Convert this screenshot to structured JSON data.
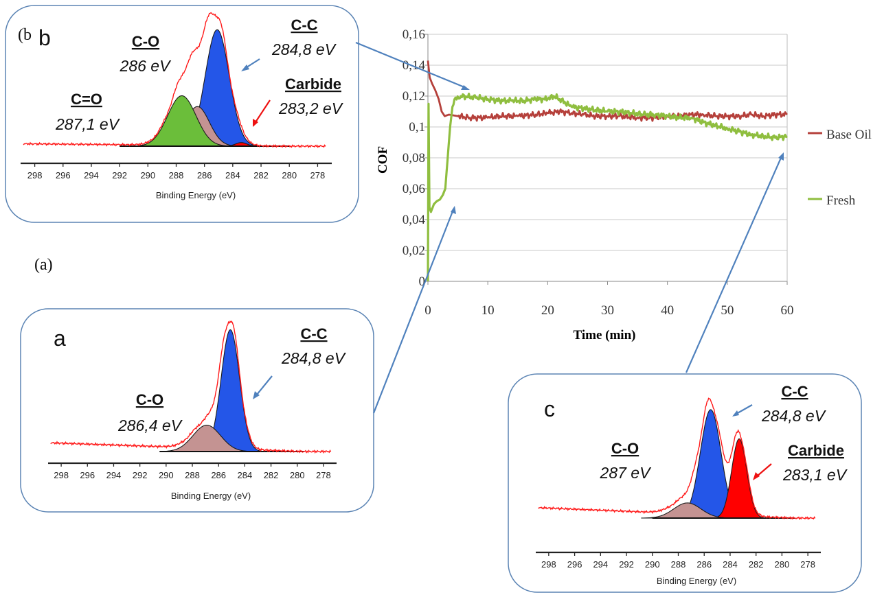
{
  "colors": {
    "base_oil": "#b5403b",
    "fresh": "#8fbe3f",
    "inset_frame": "#5b84b4",
    "pointer": "#4f81bd",
    "envelope": "#ff1a1a",
    "cc_peak": "#2456e8",
    "co_peak": "#c49392",
    "co2_peak": "#6bbe3a",
    "carbide_peak": "#ff0000",
    "red_arrow": "#ee1111"
  },
  "labels": {
    "panel_a_caption": "(a)",
    "panel_b_caption": "(b"
  },
  "chart_data": [
    {
      "id": "cof",
      "type": "line",
      "x_label": "Time (min)",
      "y_label": "COF",
      "x_ticks": [
        "0",
        "10",
        "20",
        "30",
        "40",
        "50",
        "60"
      ],
      "y_ticks": [
        "0",
        "0,02",
        "0,04",
        "0,06",
        "0,08",
        "0,1",
        "0,12",
        "0,14",
        "0,16"
      ],
      "xlim": [
        0,
        60
      ],
      "ylim": [
        0,
        0.16
      ],
      "grid": "horizontal",
      "legend_position": "right",
      "series": [
        {
          "name": "Base Oil",
          "color_key": "base_oil",
          "points": [
            [
              0,
              0.143
            ],
            [
              0.3,
              0.132
            ],
            [
              0.7,
              0.128
            ],
            [
              1.2,
              0.124
            ],
            [
              1.8,
              0.118
            ],
            [
              2.3,
              0.11
            ],
            [
              2.8,
              0.107
            ],
            [
              3.5,
              0.108
            ],
            [
              5,
              0.107
            ],
            [
              7,
              0.106
            ],
            [
              10,
              0.106
            ],
            [
              12,
              0.107
            ],
            [
              15,
              0.107
            ],
            [
              18,
              0.108
            ],
            [
              20,
              0.109
            ],
            [
              22,
              0.11
            ],
            [
              24,
              0.109
            ],
            [
              26,
              0.108
            ],
            [
              28,
              0.107
            ],
            [
              30,
              0.107
            ],
            [
              32,
              0.107
            ],
            [
              35,
              0.106
            ],
            [
              38,
              0.106
            ],
            [
              40,
              0.107
            ],
            [
              42,
              0.107
            ],
            [
              44,
              0.108
            ],
            [
              46,
              0.108
            ],
            [
              48,
              0.107
            ],
            [
              50,
              0.107
            ],
            [
              52,
              0.107
            ],
            [
              54,
              0.108
            ],
            [
              56,
              0.107
            ],
            [
              58,
              0.108
            ],
            [
              60,
              0.108
            ]
          ]
        },
        {
          "name": "Fresh",
          "color_key": "fresh",
          "points": [
            [
              0,
              0.0
            ],
            [
              0.1,
              0.115
            ],
            [
              0.25,
              0.048
            ],
            [
              0.5,
              0.045
            ],
            [
              1,
              0.05
            ],
            [
              1.5,
              0.052
            ],
            [
              2,
              0.053
            ],
            [
              2.5,
              0.056
            ],
            [
              2.9,
              0.06
            ],
            [
              3.3,
              0.08
            ],
            [
              3.7,
              0.1
            ],
            [
              4.1,
              0.113
            ],
            [
              4.6,
              0.119
            ],
            [
              5.5,
              0.12
            ],
            [
              8,
              0.119
            ],
            [
              10,
              0.118
            ],
            [
              12,
              0.117
            ],
            [
              14,
              0.117
            ],
            [
              16,
              0.117
            ],
            [
              18,
              0.118
            ],
            [
              20,
              0.118
            ],
            [
              21,
              0.12
            ],
            [
              22,
              0.118
            ],
            [
              24,
              0.113
            ],
            [
              26,
              0.112
            ],
            [
              28,
              0.111
            ],
            [
              30,
              0.11
            ],
            [
              32,
              0.11
            ],
            [
              34,
              0.109
            ],
            [
              36,
              0.108
            ],
            [
              38,
              0.108
            ],
            [
              40,
              0.107
            ],
            [
              42,
              0.106
            ],
            [
              44,
              0.106
            ],
            [
              46,
              0.103
            ],
            [
              48,
              0.101
            ],
            [
              50,
              0.099
            ],
            [
              52,
              0.097
            ],
            [
              54,
              0.095
            ],
            [
              56,
              0.094
            ],
            [
              58,
              0.093
            ],
            [
              60,
              0.094
            ]
          ]
        }
      ]
    },
    {
      "id": "xps_b",
      "type": "area",
      "panel_letter": "b",
      "x_label": "Binding Energy (eV)",
      "x_ticks": [
        "298",
        "296",
        "294",
        "292",
        "290",
        "288",
        "286",
        "284",
        "282",
        "280",
        "278"
      ],
      "xlim": [
        299,
        277
      ],
      "x_reversed": true,
      "fit_range": [
        292,
        280
      ],
      "baseline_ratio": 0.25,
      "peaks": [
        {
          "name": "C-C",
          "center": 285.1,
          "width": 0.85,
          "height": 0.97,
          "color_key": "cc_peak"
        },
        {
          "name": "C-O",
          "center": 286.5,
          "width": 0.85,
          "height": 0.33,
          "color_key": "co_peak"
        },
        {
          "name": "C=O",
          "center": 287.6,
          "width": 1.0,
          "height": 0.42,
          "color_key": "co2_peak"
        },
        {
          "name": "Carbide",
          "center": 283.4,
          "width": 0.4,
          "height": 0.03,
          "color_key": "carbide_peak"
        }
      ],
      "annotations": [
        {
          "title": "C-O",
          "value": "286 eV"
        },
        {
          "title": "C-C",
          "value": "284,8 eV"
        },
        {
          "title": "C=O",
          "value": "287,1 eV"
        },
        {
          "title": "Carbide",
          "value": "283,2 eV"
        }
      ]
    },
    {
      "id": "xps_a",
      "type": "area",
      "panel_letter": "a",
      "x_label": "Binding Energy (eV)",
      "x_ticks": [
        "298",
        "296",
        "294",
        "292",
        "290",
        "288",
        "286",
        "284",
        "282",
        "280",
        "278"
      ],
      "xlim": [
        299,
        277
      ],
      "x_reversed": true,
      "fit_range": [
        290.5,
        279.5
      ],
      "baseline_ratio": 0.13,
      "peaks": [
        {
          "name": "C-C",
          "center": 285.1,
          "width": 0.7,
          "height": 0.97,
          "color_key": "cc_peak"
        },
        {
          "name": "C-O",
          "center": 286.9,
          "width": 1.05,
          "height": 0.21,
          "color_key": "co_peak"
        }
      ],
      "annotations": [
        {
          "title": "C-C",
          "value": "284,8 eV"
        },
        {
          "title": "C-O",
          "value": "286,4 eV"
        }
      ]
    },
    {
      "id": "xps_c",
      "type": "area",
      "panel_letter": "c",
      "x_label": "Binding Energy (eV)",
      "x_ticks": [
        "298",
        "296",
        "294",
        "292",
        "290",
        "288",
        "286",
        "284",
        "282",
        "280",
        "278"
      ],
      "xlim": [
        299,
        277
      ],
      "x_reversed": true,
      "fit_range": [
        290,
        279
      ],
      "baseline_ratio": 0.2,
      "peaks": [
        {
          "name": "C-C",
          "center": 285.5,
          "width": 0.8,
          "height": 0.93,
          "color_key": "cc_peak"
        },
        {
          "name": "Carbide",
          "center": 283.3,
          "width": 0.58,
          "height": 0.68,
          "color_key": "carbide_peak"
        },
        {
          "name": "C-O",
          "center": 287.3,
          "width": 1.05,
          "height": 0.13,
          "color_key": "co_peak"
        }
      ],
      "annotations": [
        {
          "title": "C-C",
          "value": "284,8 eV"
        },
        {
          "title": "C-O",
          "value": "287 eV"
        },
        {
          "title": "Carbide",
          "value": "283,1 eV"
        }
      ]
    }
  ]
}
